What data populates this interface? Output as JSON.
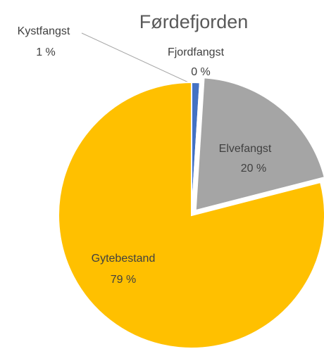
{
  "chart_data": {
    "type": "pie",
    "title": "Førdefjorden",
    "categories": [
      "Kystfangst",
      "Fjordfangst",
      "Elvefangst",
      "Gytebestand"
    ],
    "values": [
      1,
      0,
      20,
      79
    ],
    "value_labels": [
      "1 %",
      "0 %",
      "20 %",
      "79 %"
    ],
    "colors": [
      "#4472c4",
      "#ed7d31",
      "#a5a5a5",
      "#ffc000"
    ]
  }
}
